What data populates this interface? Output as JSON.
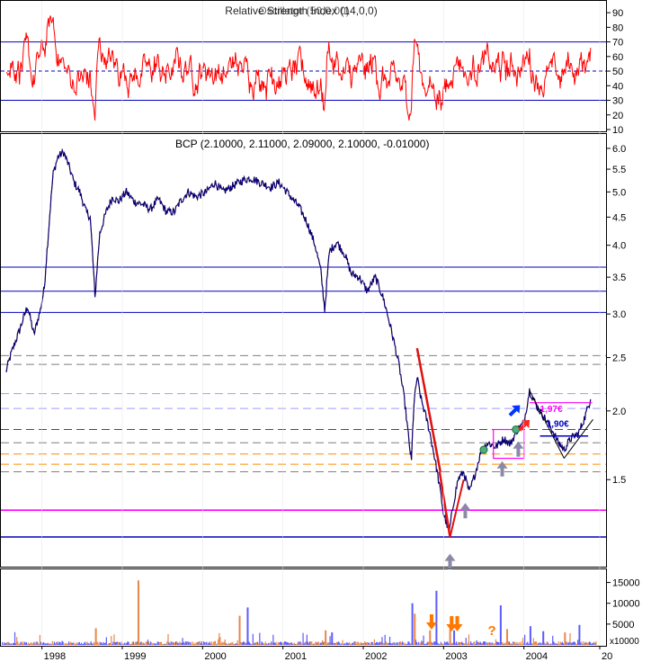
{
  "colors": {
    "background": "#ffffff",
    "frame": "#000000",
    "indicator_line": "#ff0000",
    "price_line": "#00007f",
    "support_blue": "#0000bf",
    "support_magenta": "#ff00ff",
    "dashed_lines": [
      "#7f7f7f",
      "#ff8c00",
      "#008000",
      "#9c9cff"
    ],
    "volume_orange": "#e8874a",
    "volume_blue": "#5b5bff",
    "arrow_blue": "#0033ff",
    "arrow_red": "#ff2222",
    "arrow_gray": "#8a8aa8",
    "arrow_orange": "#ff7700"
  },
  "chart_data": [
    {
      "type": "line",
      "panel": "indicator",
      "title": "Relative Strength Index (14,0,0)",
      "title_overlay": "Oscillator (50,0,00)",
      "ylim": [
        10,
        95
      ],
      "yticks": [
        "90",
        "80",
        "70",
        "60",
        "50",
        "40",
        "30",
        "20",
        "10"
      ],
      "ytick_values": [
        90,
        80,
        70,
        60,
        50,
        40,
        30,
        20,
        10
      ],
      "reference_lines": [
        {
          "value": 70,
          "style": "solid"
        },
        {
          "value": 50,
          "style": "dashed"
        },
        {
          "value": 30,
          "style": "solid"
        }
      ],
      "series": [
        {
          "values": []
        }
      ]
    },
    {
      "type": "line",
      "panel": "price",
      "title": "BCP (2.10000, 2.11000, 2.09000, 2.10000, -0.01000)",
      "ylim": [
        1.05,
        6.3
      ],
      "yticks": [
        "6.0",
        "5.5",
        "5.0",
        "4.5",
        "4.0",
        "3.5",
        "3.0",
        "2.5",
        "2.0",
        "1.5"
      ],
      "ytick_values": [
        6.0,
        5.5,
        5.0,
        4.5,
        4.0,
        3.5,
        3.0,
        2.5,
        2.0,
        1.5
      ],
      "price_points": [
        [
          1997.55,
          2.35
        ],
        [
          1997.62,
          2.55
        ],
        [
          1997.72,
          2.8
        ],
        [
          1997.82,
          3.1
        ],
        [
          1997.9,
          2.75
        ],
        [
          1997.98,
          3.05
        ],
        [
          1998.03,
          3.35
        ],
        [
          1998.08,
          4.2
        ],
        [
          1998.14,
          5.4
        ],
        [
          1998.2,
          5.8
        ],
        [
          1998.27,
          5.9
        ],
        [
          1998.33,
          5.6
        ],
        [
          1998.4,
          5.2
        ],
        [
          1998.47,
          5.0
        ],
        [
          1998.55,
          4.6
        ],
        [
          1998.6,
          4.5
        ],
        [
          1998.66,
          3.2
        ],
        [
          1998.72,
          4.2
        ],
        [
          1998.8,
          4.6
        ],
        [
          1998.88,
          4.9
        ],
        [
          1998.95,
          4.8
        ],
        [
          1999.05,
          5.0
        ],
        [
          1999.15,
          4.8
        ],
        [
          1999.25,
          4.75
        ],
        [
          1999.35,
          4.65
        ],
        [
          1999.45,
          4.85
        ],
        [
          1999.55,
          4.6
        ],
        [
          1999.65,
          4.6
        ],
        [
          1999.72,
          4.8
        ],
        [
          1999.82,
          5.0
        ],
        [
          1999.92,
          4.9
        ],
        [
          2000.05,
          5.0
        ],
        [
          2000.15,
          5.2
        ],
        [
          2000.25,
          5.0
        ],
        [
          2000.35,
          5.1
        ],
        [
          2000.5,
          5.25
        ],
        [
          2000.6,
          5.3
        ],
        [
          2000.72,
          5.2
        ],
        [
          2000.85,
          5.1
        ],
        [
          2000.95,
          5.2
        ],
        [
          2001.05,
          5.0
        ],
        [
          2001.12,
          4.85
        ],
        [
          2001.2,
          4.7
        ],
        [
          2001.3,
          4.4
        ],
        [
          2001.4,
          4.0
        ],
        [
          2001.47,
          3.6
        ],
        [
          2001.52,
          3.05
        ],
        [
          2001.58,
          3.9
        ],
        [
          2001.67,
          4.05
        ],
        [
          2001.77,
          3.85
        ],
        [
          2001.85,
          3.55
        ],
        [
          2001.95,
          3.5
        ],
        [
          2002.05,
          3.3
        ],
        [
          2002.15,
          3.5
        ],
        [
          2002.25,
          3.2
        ],
        [
          2002.35,
          2.8
        ],
        [
          2002.45,
          2.4
        ],
        [
          2002.52,
          2.05
        ],
        [
          2002.57,
          1.75
        ],
        [
          2002.6,
          1.62
        ],
        [
          2002.63,
          2.05
        ],
        [
          2002.67,
          2.3
        ],
        [
          2002.72,
          2.1
        ],
        [
          2002.82,
          1.85
        ],
        [
          2002.92,
          1.55
        ],
        [
          2003.0,
          1.3
        ],
        [
          2003.07,
          1.2
        ],
        [
          2003.12,
          1.35
        ],
        [
          2003.18,
          1.5
        ],
        [
          2003.25,
          1.55
        ],
        [
          2003.32,
          1.42
        ],
        [
          2003.4,
          1.55
        ],
        [
          2003.47,
          1.7
        ],
        [
          2003.55,
          1.75
        ],
        [
          2003.65,
          1.72
        ],
        [
          2003.75,
          1.78
        ],
        [
          2003.83,
          1.74
        ],
        [
          2003.92,
          1.85
        ],
        [
          2004.0,
          1.9
        ],
        [
          2004.07,
          2.18
        ],
        [
          2004.15,
          2.05
        ],
        [
          2004.25,
          1.95
        ],
        [
          2004.35,
          1.85
        ],
        [
          2004.42,
          1.76
        ],
        [
          2004.5,
          1.7
        ],
        [
          2004.58,
          1.78
        ],
        [
          2004.68,
          1.82
        ],
        [
          2004.76,
          1.95
        ],
        [
          2004.83,
          2.1
        ]
      ],
      "horizontal_levels": [
        {
          "value": 3.65,
          "style": "solid",
          "color": "#0000bf"
        },
        {
          "value": 3.3,
          "style": "solid",
          "color": "#0000bf"
        },
        {
          "value": 3.02,
          "style": "solid",
          "color": "#0000bf"
        },
        {
          "value": 2.52,
          "style": "dashed",
          "color": "#7f7f7f"
        },
        {
          "value": 2.43,
          "style": "dashed",
          "color": "#7f7f7f"
        },
        {
          "value": 2.15,
          "style": "dashed",
          "color": "#9c9cff"
        },
        {
          "value": 2.02,
          "style": "dashed",
          "color": "#9c9cff"
        },
        {
          "value": 1.85,
          "style": "dashed",
          "color": "#008000"
        },
        {
          "value": 1.75,
          "style": "dashed",
          "color": "#7f7f7f"
        },
        {
          "value": 1.67,
          "style": "dashed",
          "color": "#ff8c00"
        },
        {
          "value": 1.6,
          "style": "dashed",
          "color": "#ff8c00"
        },
        {
          "value": 1.55,
          "style": "dashed",
          "color": "#7f7f7f"
        },
        {
          "value": 1.32,
          "style": "solid",
          "color": "#ff00ff"
        },
        {
          "value": 1.18,
          "style": "solid",
          "color": "#0000bf"
        }
      ],
      "annotation_labels": [
        "1,97€",
        "1,90€"
      ]
    },
    {
      "type": "bar",
      "panel": "volume",
      "yticks": [
        "15000",
        "10000",
        "5000"
      ],
      "ytick_values": [
        15000,
        10000,
        5000
      ],
      "ylim": [
        0,
        17500
      ],
      "unit_label": "x10000",
      "spikes": [
        [
          1999.19,
          15500,
          "orange"
        ],
        [
          1998.66,
          4000,
          "orange"
        ],
        [
          2000.45,
          7000,
          "orange"
        ],
        [
          2000.55,
          9000,
          "blue"
        ],
        [
          2001.52,
          3500,
          "orange"
        ],
        [
          2001.6,
          3000,
          "blue"
        ],
        [
          2002.6,
          10000,
          "blue"
        ],
        [
          2002.63,
          7500,
          "orange"
        ],
        [
          2002.9,
          13000,
          "blue"
        ],
        [
          2002.82,
          3500,
          "orange"
        ],
        [
          2003.07,
          3800,
          "orange"
        ],
        [
          2003.12,
          3500,
          "blue"
        ],
        [
          2003.7,
          9500,
          "blue"
        ],
        [
          2003.78,
          3800,
          "orange"
        ],
        [
          2004.07,
          4500,
          "blue"
        ],
        [
          2004.23,
          3300,
          "blue"
        ],
        [
          2004.5,
          3000,
          "orange"
        ],
        [
          2004.68,
          4800,
          "blue"
        ]
      ],
      "markers": [
        "?"
      ]
    }
  ],
  "x_axis": {
    "ticks": [
      "1998",
      "1999",
      "2000",
      "2001",
      "2002",
      "2003",
      "2004",
      "20"
    ],
    "tick_values": [
      1998.0,
      1999.0,
      2000.0,
      2001.0,
      2002.0,
      2003.0,
      2004.0,
      2005.0
    ]
  }
}
